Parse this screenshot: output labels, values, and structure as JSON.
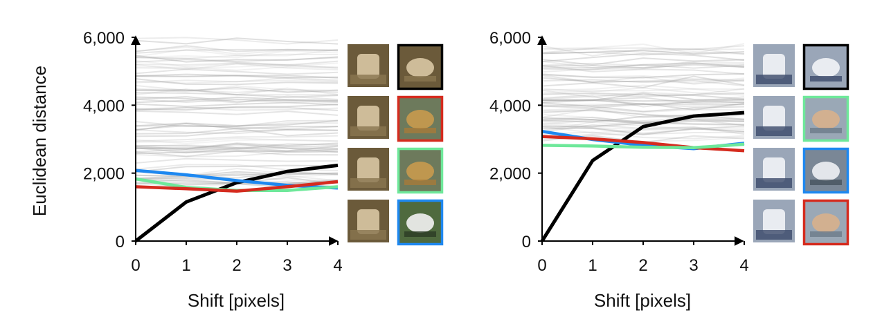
{
  "colors": {
    "black_series": "#000000",
    "blue_series": "#1e88f0",
    "green_series": "#6ee89a",
    "red_series": "#d52b1e",
    "background_curves": "#9a9a9a"
  },
  "chart_data": [
    {
      "type": "line",
      "ylabel": "Euclidean distance",
      "xlabel": "Shift [pixels]",
      "x": [
        0,
        1,
        2,
        3,
        4
      ],
      "xlim": [
        0,
        4
      ],
      "ylim": [
        0,
        6000
      ],
      "xticks": [
        "0",
        "1",
        "2",
        "3",
        "4"
      ],
      "yticks": [
        "0",
        "2,000",
        "4,000",
        "6,000"
      ],
      "grid": false,
      "series": [
        {
          "color": "black",
          "values": [
            0,
            1150,
            1720,
            2050,
            2230
          ]
        },
        {
          "color": "blue",
          "values": [
            2080,
            1950,
            1780,
            1640,
            1560
          ]
        },
        {
          "color": "green",
          "values": [
            1830,
            1580,
            1490,
            1490,
            1600
          ]
        },
        {
          "color": "red",
          "values": [
            1600,
            1540,
            1470,
            1600,
            1750
          ]
        }
      ],
      "background_curves": {
        "count": 80,
        "range": [
          1500,
          5900
        ]
      },
      "thumbnails": [
        {
          "query": "deer",
          "match": "deer",
          "frame": "black"
        },
        {
          "query": "deer",
          "match": "frog",
          "frame": "red"
        },
        {
          "query": "deer",
          "match": "frog",
          "frame": "green"
        },
        {
          "query": "deer",
          "match": "bird",
          "frame": "blue"
        }
      ]
    },
    {
      "type": "line",
      "ylabel": "",
      "xlabel": "Shift [pixels]",
      "x": [
        0,
        1,
        2,
        3,
        4
      ],
      "xlim": [
        0,
        4
      ],
      "ylim": [
        0,
        6000
      ],
      "xticks": [
        "0",
        "1",
        "2",
        "3",
        "4"
      ],
      "yticks": [
        "0",
        "2,000",
        "4,000",
        "6,000"
      ],
      "grid": false,
      "series": [
        {
          "color": "black",
          "values": [
            0,
            2370,
            3370,
            3680,
            3780
          ]
        },
        {
          "color": "blue",
          "values": [
            3230,
            2990,
            2820,
            2720,
            2880
          ]
        },
        {
          "color": "red",
          "values": [
            3080,
            3010,
            2900,
            2750,
            2660
          ]
        },
        {
          "color": "green",
          "values": [
            2820,
            2800,
            2760,
            2750,
            2850
          ]
        }
      ],
      "background_curves": {
        "count": 60,
        "range": [
          3000,
          5700
        ]
      },
      "thumbnails": [
        {
          "query": "truck",
          "match": "truck",
          "frame": "black"
        },
        {
          "query": "truck",
          "match": "ship",
          "frame": "green"
        },
        {
          "query": "truck",
          "match": "airplane",
          "frame": "blue"
        },
        {
          "query": "truck",
          "match": "ship",
          "frame": "red"
        }
      ]
    }
  ]
}
